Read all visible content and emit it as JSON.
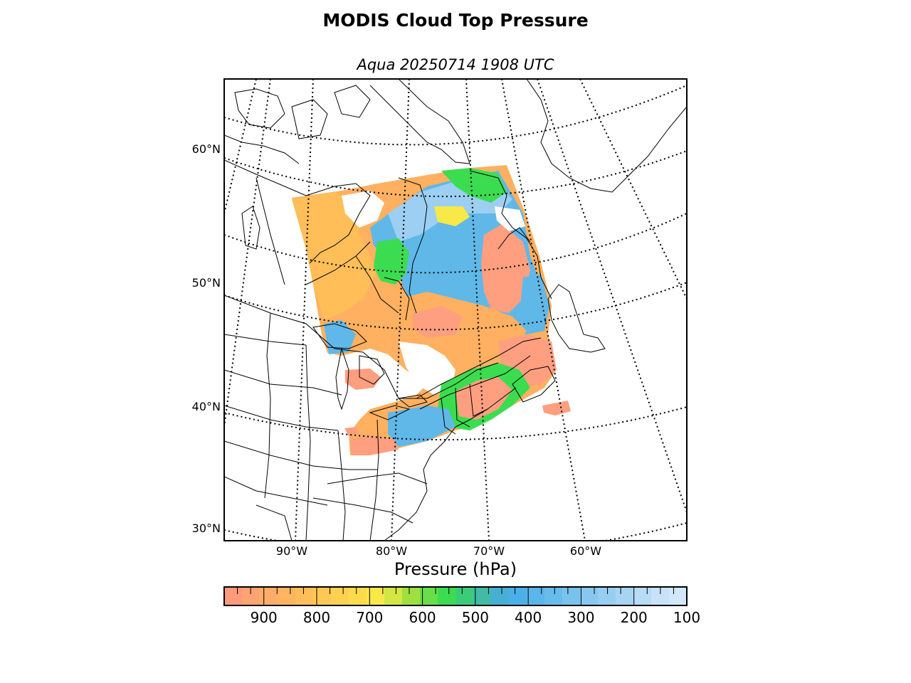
{
  "title": "MODIS Cloud Top Pressure",
  "subtitle": "Aqua 20250714 1908 UTC",
  "map": {
    "lat_labels": [
      "60°N",
      "50°N",
      "40°N",
      "30°N"
    ],
    "lon_labels": [
      "90°W",
      "80°W",
      "70°W",
      "60°W"
    ],
    "colors": {
      "low_cloud": "#ff9f80",
      "mid_low": "#ffb060",
      "orange": "#ffc050",
      "yellow": "#f8e848",
      "green": "#3cdc50",
      "blue": "#60b8e8",
      "light_blue": "#9ccff2",
      "coast": "#000000"
    }
  },
  "colorbar": {
    "label": "Pressure (hPa)",
    "ticks": [
      "900",
      "800",
      "700",
      "600",
      "500",
      "400",
      "300",
      "200",
      "100"
    ],
    "range": [
      975,
      100
    ],
    "colors": [
      "#ff9a7a",
      "#ffa372",
      "#ffad68",
      "#ffb560",
      "#ffbe58",
      "#ffc754",
      "#ffd150",
      "#ffdb4c",
      "#f8e848",
      "#d2e644",
      "#9ee040",
      "#68de48",
      "#3cdc50",
      "#3ccc78",
      "#40bca4",
      "#46b0d4",
      "#4cb0e8",
      "#5ab6ea",
      "#68bcec",
      "#78c2ee",
      "#88c8f0",
      "#98cef2",
      "#a8d4f4",
      "#b8dbf6",
      "#c8e2f8",
      "#d2e8fa"
    ]
  }
}
